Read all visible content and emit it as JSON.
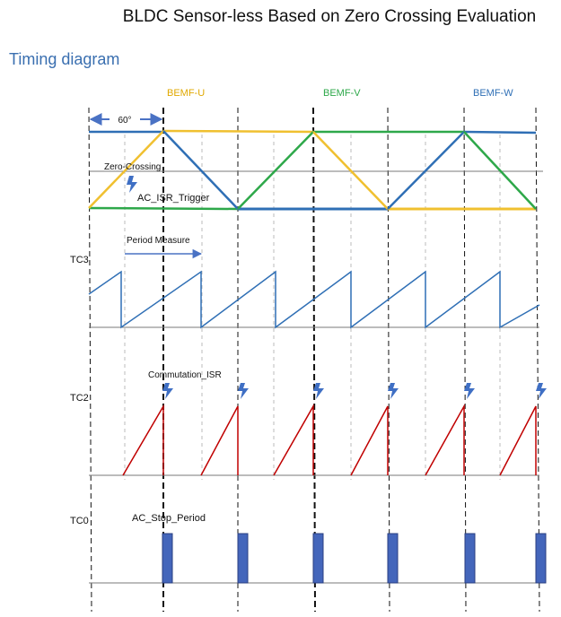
{
  "page": {
    "title": "BLDC Sensor-less Based on Zero Crossing Evaluation",
    "subtitle": "Timing diagram"
  },
  "legend": {
    "u_label": "BEMF-U",
    "v_label": "BEMF-V",
    "w_label": "BEMF-W"
  },
  "annotations": {
    "angle": "60°",
    "zero_crossing": "Zero-Crossing",
    "ac_isr_trigger": "AC_ISR_Trigger",
    "period_measure": "Period Measure",
    "commutation_isr": "Commutation_ISR",
    "ac_stop_period": "AC_Stop_Period"
  },
  "rows": {
    "tc3": "TC3",
    "tc2": "TC2",
    "tc0": "TC0"
  },
  "colors": {
    "bemf_u": "#f0c030",
    "bemf_v": "#2ea84a",
    "bemf_w": "#2f6fb5",
    "tc3": "#2f6fb5",
    "tc2": "#c00000",
    "tc0": "#4466bb",
    "arrow": "#4a72c4",
    "title": "#3a6fb0"
  }
}
